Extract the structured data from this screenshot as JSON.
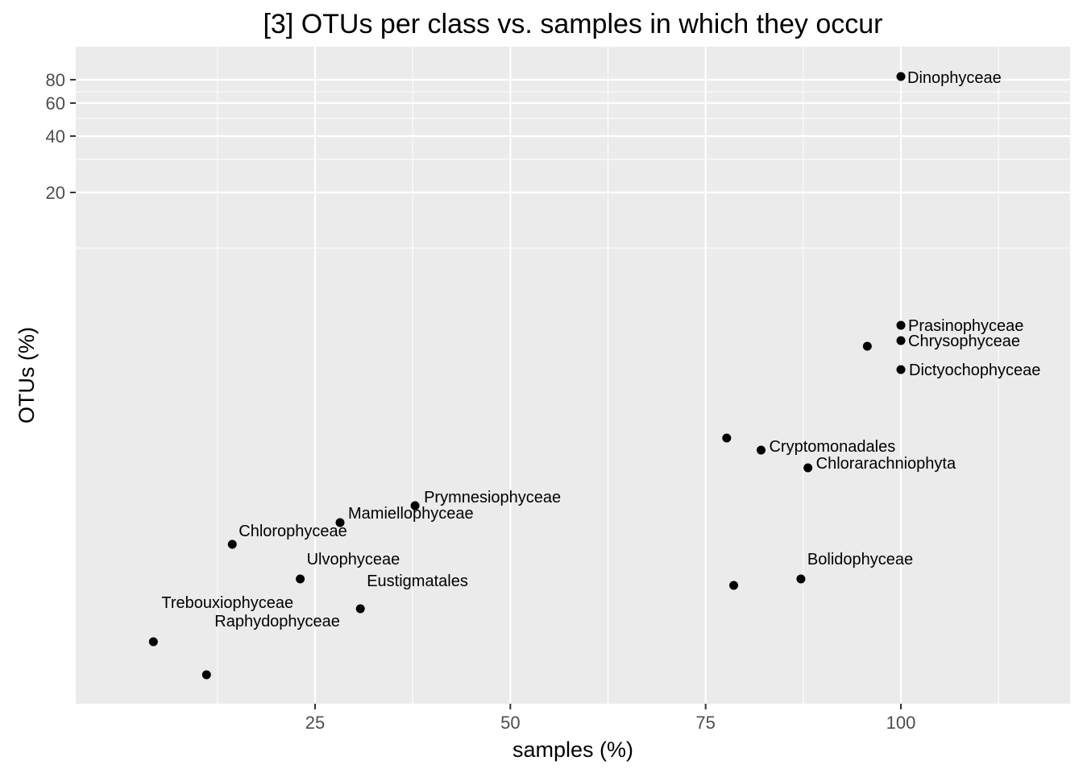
{
  "chart_data": {
    "type": "scatter",
    "title": "[3] OTUs per class vs. samples in which they occur",
    "xlabel": "samples (%)",
    "ylabel": "OTUs (%)",
    "x_ticks": [
      25,
      50,
      75,
      100
    ],
    "y_ticks": [
      20,
      40,
      60,
      80
    ],
    "grid": true,
    "points": [
      {
        "x": 100,
        "label": "Dinophyceae"
      },
      {
        "x": 100,
        "label": "Prasinophyceae"
      },
      {
        "x": 100,
        "label": "Chrysophyceae"
      },
      {
        "x": 95.7,
        "label": ""
      },
      {
        "x": 100,
        "label": "Dictyochophyceae"
      },
      {
        "x": 77.7,
        "label": ""
      },
      {
        "x": 82.1,
        "label": "Cryptomonadales"
      },
      {
        "x": 88.1,
        "label": "Chlorarachniophyta"
      },
      {
        "x": 37.8,
        "label": "Prymnesiophyceae"
      },
      {
        "x": 28.2,
        "label": "Mamiellophyceae"
      },
      {
        "x": 14.4,
        "label": "Chlorophyceae"
      },
      {
        "x": 23.1,
        "label": "Ulvophyceae"
      },
      {
        "x": 87.2,
        "label": "Bolidophyceae"
      },
      {
        "x": 78.6,
        "label": ""
      },
      {
        "x": 30.8,
        "label": "Eustigmatales"
      },
      {
        "x": 4.3,
        "label": "Trebouxiophyceae"
      },
      {
        "x": 11.1,
        "label": "Raphydophyceae"
      }
    ]
  },
  "style": {
    "panel_bg": "#ebebeb",
    "grid_color": "#ffffff",
    "point_color": "#000000",
    "tick_color": "#333333"
  }
}
